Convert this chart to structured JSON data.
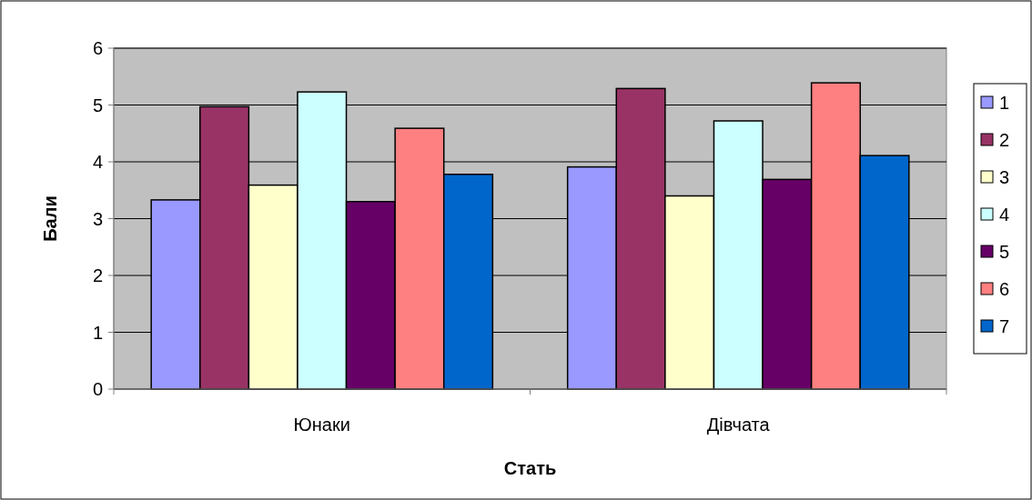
{
  "chart_data": {
    "type": "bar",
    "xlabel": "Стать",
    "ylabel": "Бали",
    "categories": [
      "Юнаки",
      "Дівчата"
    ],
    "series": [
      {
        "name": "1",
        "color": "#9999ff",
        "values": [
          3.33,
          3.91
        ]
      },
      {
        "name": "2",
        "color": "#993366",
        "values": [
          4.97,
          5.29
        ]
      },
      {
        "name": "3",
        "color": "#ffffcc",
        "values": [
          3.59,
          3.4
        ]
      },
      {
        "name": "4",
        "color": "#ccffff",
        "values": [
          5.23,
          4.72
        ]
      },
      {
        "name": "5",
        "color": "#660066",
        "values": [
          3.3,
          3.69
        ]
      },
      {
        "name": "6",
        "color": "#ff8080",
        "values": [
          4.59,
          5.39
        ]
      },
      {
        "name": "7",
        "color": "#0066cc",
        "values": [
          3.78,
          4.11
        ]
      }
    ],
    "ylim": [
      0,
      6
    ],
    "yticks": [
      0,
      1,
      2,
      3,
      4,
      5,
      6
    ],
    "grid": "y",
    "legend": "right"
  }
}
